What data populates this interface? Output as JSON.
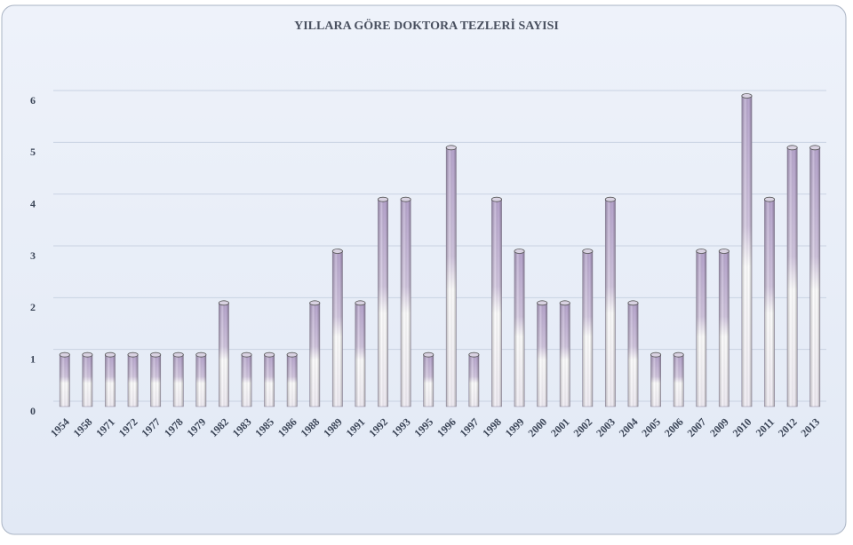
{
  "chart_data": {
    "type": "bar",
    "title": "YILLARA GÖRE DOKTORA TEZLERİ SAYISI",
    "categories": [
      "1954",
      "1958",
      "1971",
      "1972",
      "1977",
      "1978",
      "1979",
      "1982",
      "1983",
      "1985",
      "1986",
      "1988",
      "1989",
      "1991",
      "1992",
      "1993",
      "1995",
      "1996",
      "1997",
      "1998",
      "1999",
      "2000",
      "2001",
      "2002",
      "2003",
      "2004",
      "2005",
      "2006",
      "2007",
      "2009",
      "2010",
      "2011",
      "2012",
      "2013"
    ],
    "values": [
      1,
      1,
      1,
      1,
      1,
      1,
      1,
      2,
      1,
      1,
      1,
      2,
      3,
      2,
      4,
      4,
      1,
      5,
      1,
      4,
      3,
      2,
      2,
      3,
      4,
      2,
      1,
      1,
      3,
      3,
      6,
      4,
      5,
      5
    ],
    "color": "#b9a8d0",
    "ylim": [
      0,
      6
    ],
    "yticks": [
      0,
      1,
      2,
      3,
      4,
      5,
      6
    ],
    "grid": true
  }
}
